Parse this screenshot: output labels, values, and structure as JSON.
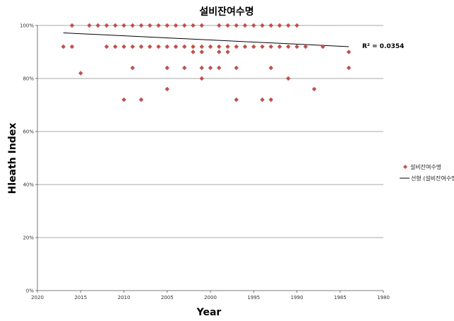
{
  "chart_data": {
    "type": "scatter",
    "title": "설비잔여수명",
    "xlabel": "Year",
    "ylabel": "Hleath Index",
    "x_reversed": true,
    "xlim": [
      1980,
      2020
    ],
    "ylim": [
      0,
      100
    ],
    "x_ticks": [
      "2020",
      "2015",
      "2010",
      "2005",
      "2000",
      "1995",
      "1990",
      "1985",
      "1980"
    ],
    "y_ticks": [
      "0%",
      "20%",
      "40%",
      "60%",
      "80%",
      "100%"
    ],
    "grid": true,
    "legend_position": "right",
    "series": [
      {
        "name": "설비잔여수명",
        "marker": "diamond",
        "color": "#c0504d",
        "points": [
          [
            2017,
            92
          ],
          [
            2016,
            100
          ],
          [
            2016,
            92
          ],
          [
            2015,
            82
          ],
          [
            2014,
            100
          ],
          [
            2013,
            100
          ],
          [
            2012,
            100
          ],
          [
            2012,
            92
          ],
          [
            2011,
            100
          ],
          [
            2011,
            92
          ],
          [
            2010,
            100
          ],
          [
            2010,
            92
          ],
          [
            2010,
            72
          ],
          [
            2009,
            100
          ],
          [
            2009,
            92
          ],
          [
            2009,
            84
          ],
          [
            2008,
            100
          ],
          [
            2008,
            92
          ],
          [
            2008,
            72
          ],
          [
            2007,
            100
          ],
          [
            2007,
            92
          ],
          [
            2006,
            100
          ],
          [
            2006,
            92
          ],
          [
            2005,
            100
          ],
          [
            2005,
            92
          ],
          [
            2005,
            84
          ],
          [
            2005,
            76
          ],
          [
            2004,
            100
          ],
          [
            2004,
            92
          ],
          [
            2003,
            100
          ],
          [
            2003,
            92
          ],
          [
            2003,
            84
          ],
          [
            2002,
            100
          ],
          [
            2002,
            92
          ],
          [
            2002,
            90
          ],
          [
            2001,
            100
          ],
          [
            2001,
            92
          ],
          [
            2001,
            90
          ],
          [
            2001,
            84
          ],
          [
            2001,
            80
          ],
          [
            2000,
            92
          ],
          [
            2000,
            84
          ],
          [
            1999,
            100
          ],
          [
            1999,
            92
          ],
          [
            1999,
            90
          ],
          [
            1999,
            84
          ],
          [
            1998,
            100
          ],
          [
            1998,
            92
          ],
          [
            1998,
            90
          ],
          [
            1997,
            100
          ],
          [
            1997,
            92
          ],
          [
            1997,
            84
          ],
          [
            1997,
            72
          ],
          [
            1996,
            100
          ],
          [
            1996,
            92
          ],
          [
            1995,
            100
          ],
          [
            1995,
            92
          ],
          [
            1994,
            100
          ],
          [
            1994,
            92
          ],
          [
            1994,
            72
          ],
          [
            1993,
            100
          ],
          [
            1993,
            92
          ],
          [
            1993,
            84
          ],
          [
            1993,
            72
          ],
          [
            1992,
            100
          ],
          [
            1992,
            92
          ],
          [
            1991,
            100
          ],
          [
            1991,
            92
          ],
          [
            1991,
            80
          ],
          [
            1990,
            100
          ],
          [
            1990,
            92
          ],
          [
            1989,
            92
          ],
          [
            1988,
            76
          ],
          [
            1987,
            92
          ],
          [
            1984,
            90
          ],
          [
            1984,
            84
          ]
        ]
      }
    ],
    "trendline": {
      "name": "선형 (설비잔여수명)",
      "type": "linear",
      "color": "#000000",
      "from": [
        2017,
        97.2
      ],
      "to": [
        1984,
        92.0
      ],
      "r_squared_label": "R² = 0.0354"
    }
  }
}
